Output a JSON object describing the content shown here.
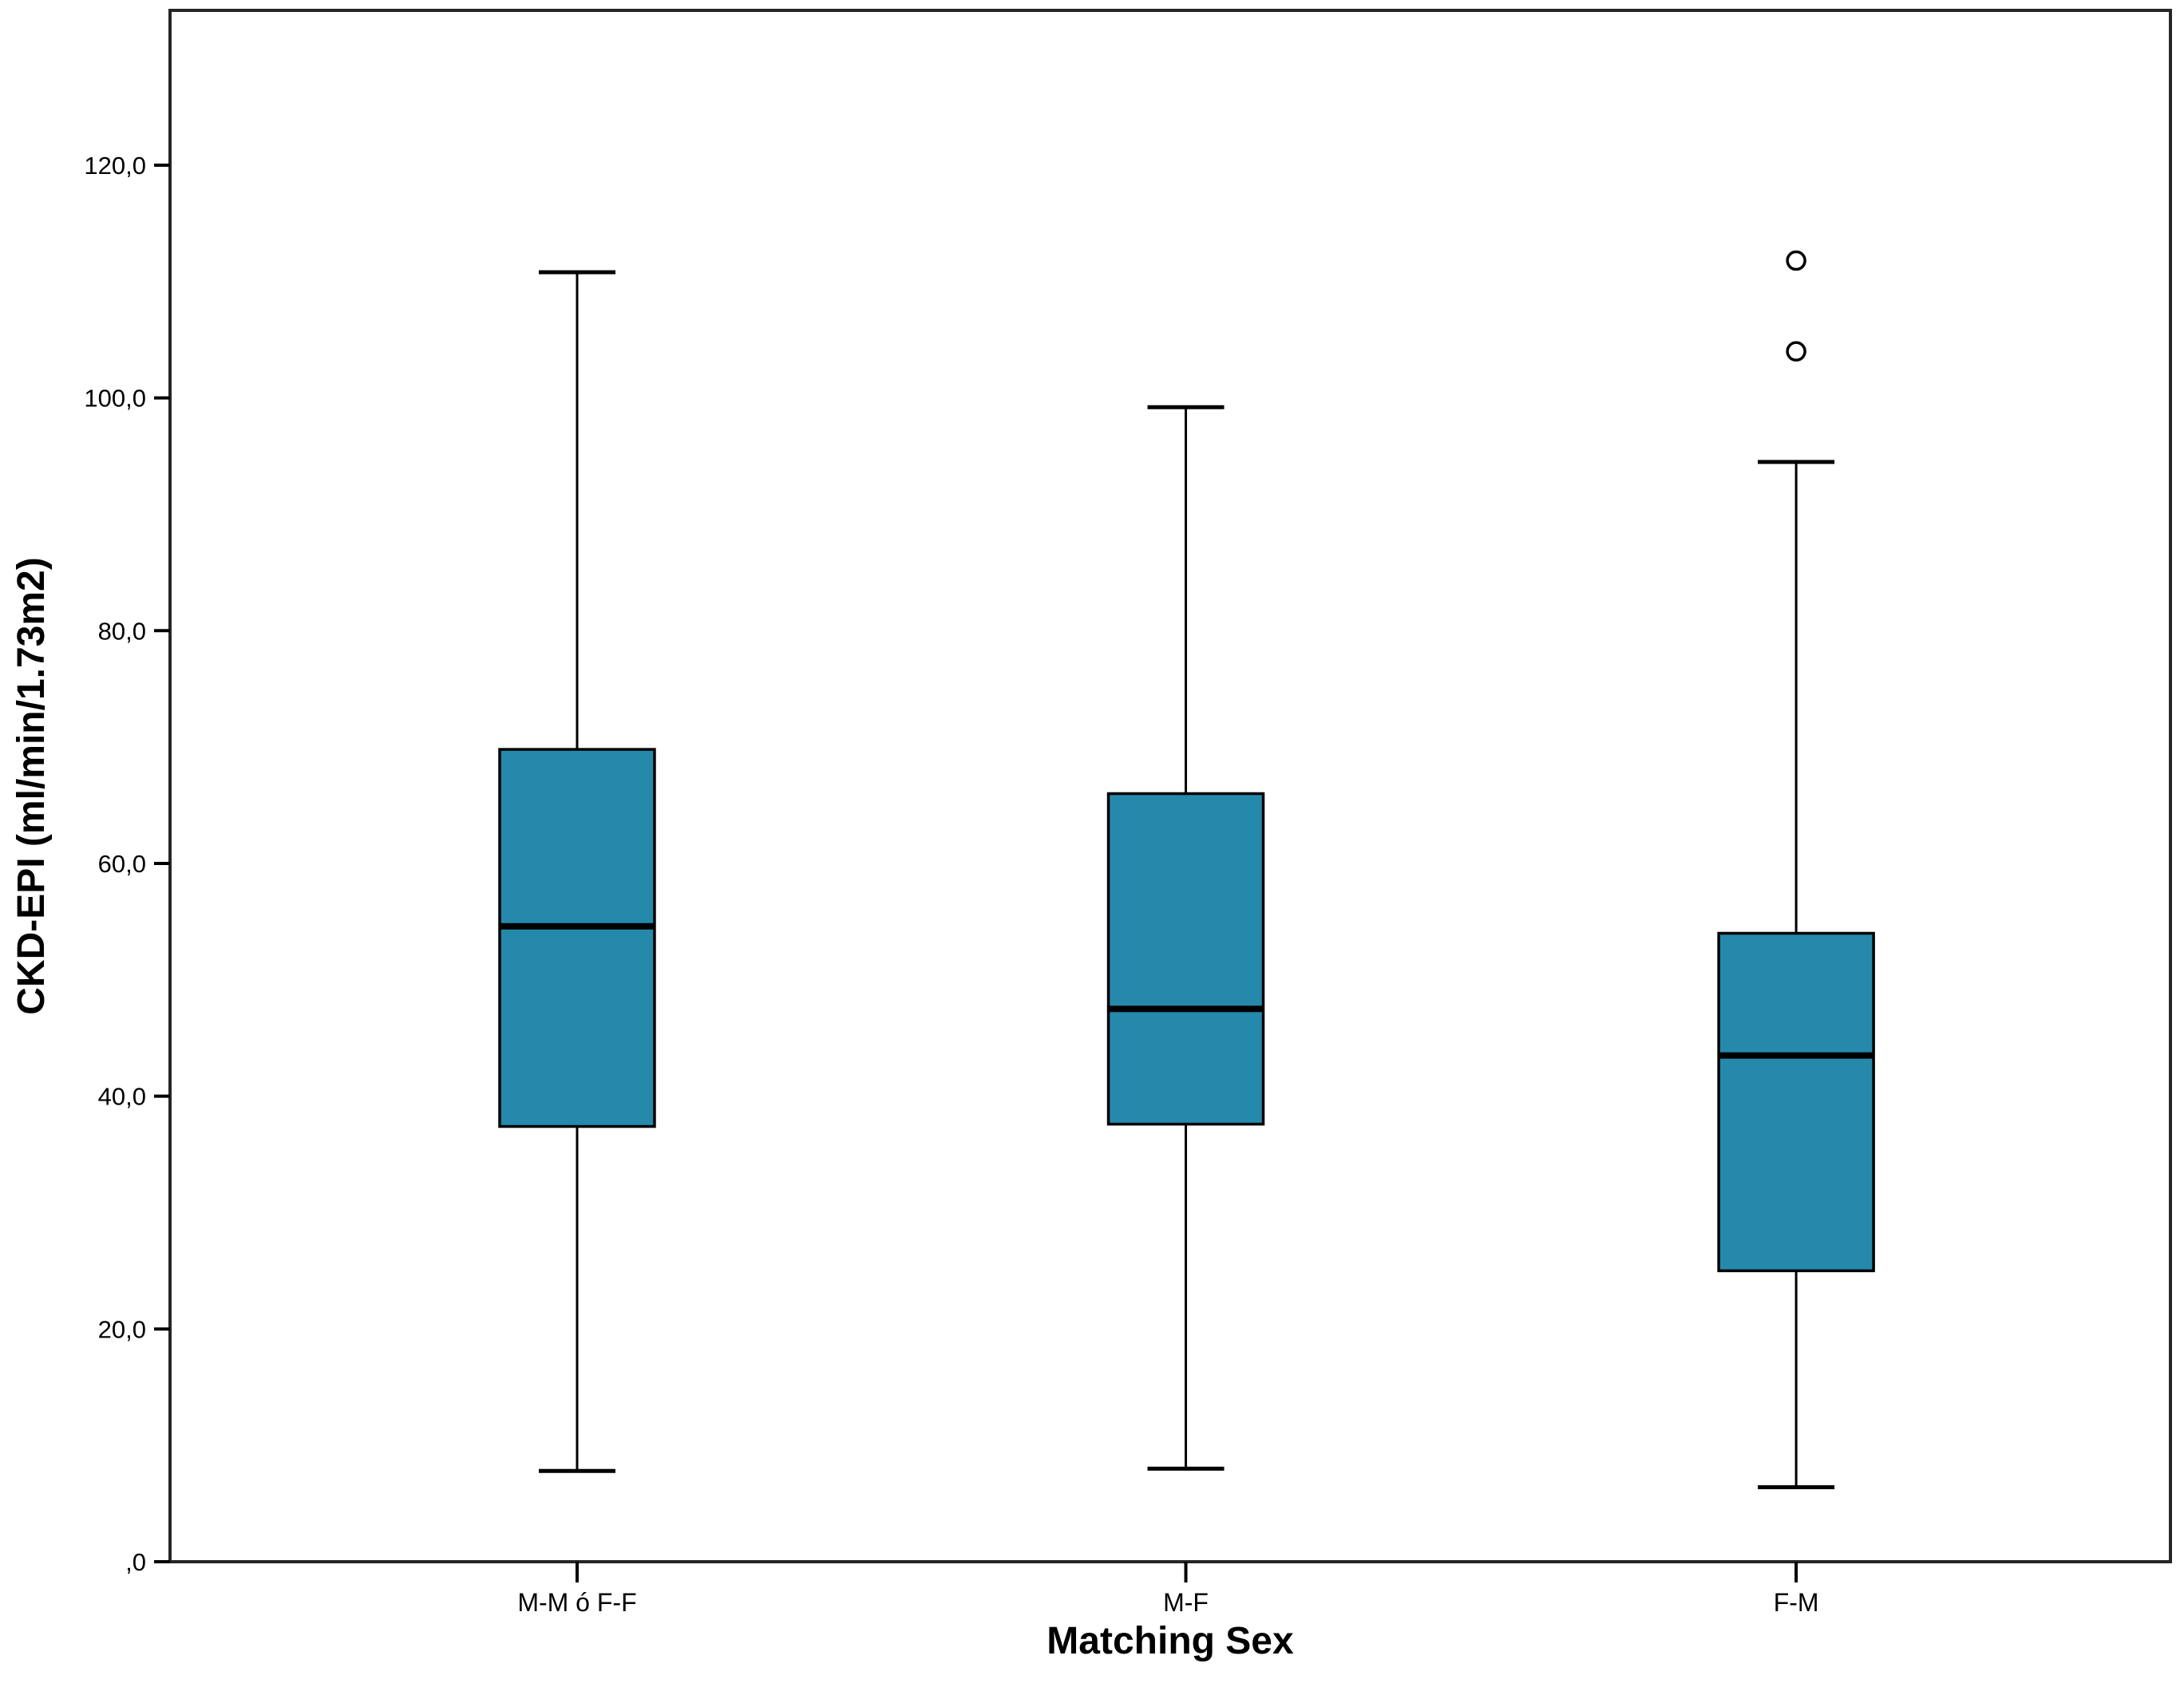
{
  "chart_data": {
    "type": "boxplot",
    "title": "",
    "xlabel": "Matching Sex",
    "ylabel": "CKD-EPI (ml/min/1.73m2)",
    "ylim": [
      0,
      133.3
    ],
    "yticks": [
      0,
      20,
      40,
      60,
      80,
      100,
      120
    ],
    "ytick_labels": [
      ",0",
      "20,0",
      "40,0",
      "60,0",
      "80,0",
      "100,0",
      "120,0"
    ],
    "categories": [
      "M-M ó F-F",
      "M-F",
      "F-M"
    ],
    "series": [
      {
        "category": "M-M ó F-F",
        "whisker_low": 7.8,
        "q1": 37.4,
        "median": 54.6,
        "q3": 69.8,
        "whisker_high": 110.8,
        "outliers": []
      },
      {
        "category": "M-F",
        "whisker_low": 8.0,
        "q1": 37.6,
        "median": 47.5,
        "q3": 66.0,
        "whisker_high": 99.2,
        "outliers": []
      },
      {
        "category": "F-M",
        "whisker_low": 6.4,
        "q1": 25.0,
        "median": 43.5,
        "q3": 54.0,
        "whisker_high": 94.5,
        "outliers": [
          104.0,
          111.8
        ]
      }
    ],
    "grid": false,
    "legend": false,
    "colors": {
      "box_fill": "#2589AC",
      "line": "#000000",
      "frame": "#262626",
      "background": "#FFFFFF"
    }
  }
}
